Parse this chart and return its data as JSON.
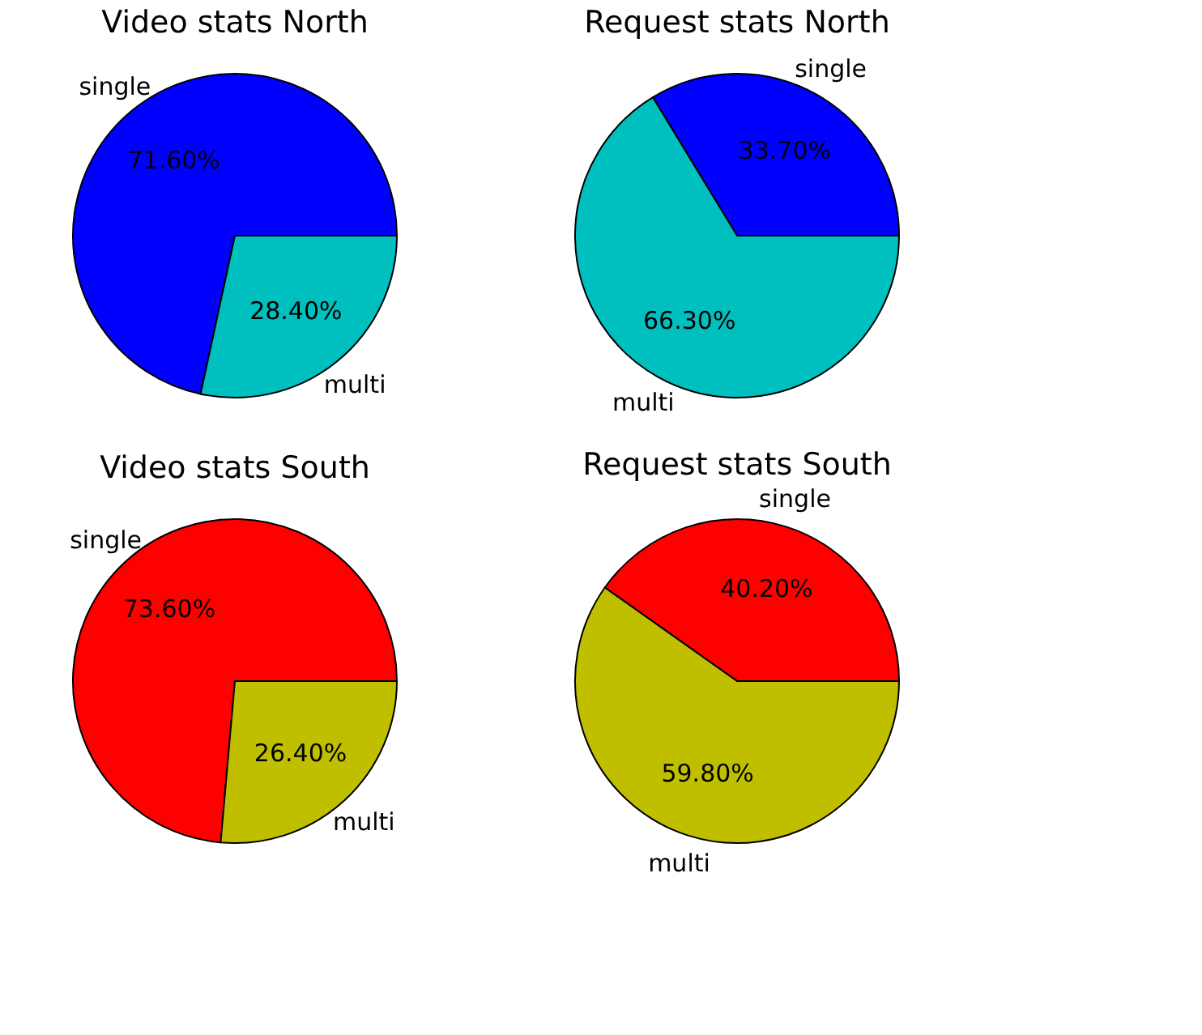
{
  "chart_data": [
    {
      "type": "pie",
      "title": "Video stats North",
      "categories": [
        "single",
        "multi"
      ],
      "values": [
        71.6,
        28.4
      ],
      "colors": [
        "#0000ff",
        "#00bfbf"
      ],
      "value_labels": [
        "71.60%",
        "28.40%"
      ]
    },
    {
      "type": "pie",
      "title": "Request stats North",
      "categories": [
        "single",
        "multi"
      ],
      "values": [
        33.7,
        66.3
      ],
      "colors": [
        "#0000ff",
        "#00bfbf"
      ],
      "value_labels": [
        "33.70%",
        "66.30%"
      ]
    },
    {
      "type": "pie",
      "title": "Video stats South",
      "categories": [
        "single",
        "multi"
      ],
      "values": [
        73.6,
        26.4
      ],
      "colors": [
        "#ff0000",
        "#bfbf00"
      ],
      "value_labels": [
        "73.60%",
        "26.40%"
      ]
    },
    {
      "type": "pie",
      "title": "Request stats South",
      "categories": [
        "single",
        "multi"
      ],
      "values": [
        40.2,
        59.8
      ],
      "colors": [
        "#ff0000",
        "#bfbf00"
      ],
      "value_labels": [
        "40.20%",
        "59.80%"
      ]
    }
  ]
}
